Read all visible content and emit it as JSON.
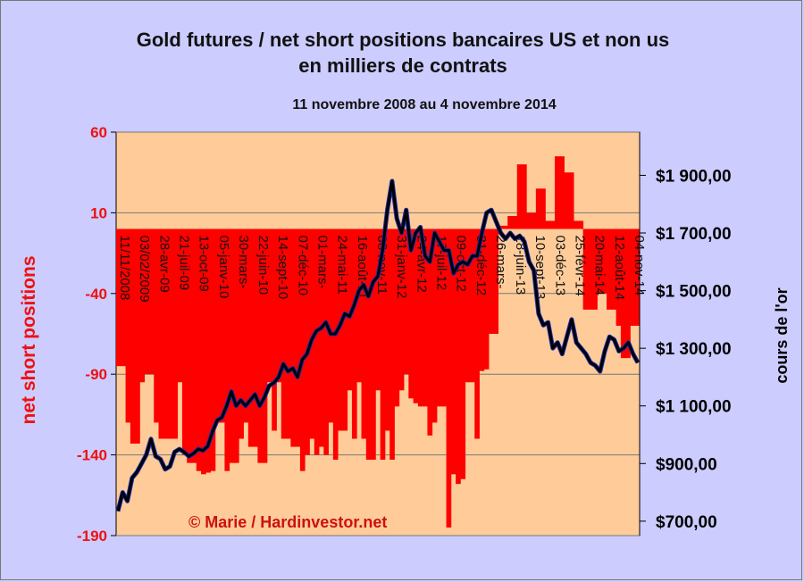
{
  "chart_data": {
    "type": "bar+line",
    "title": "Gold futures / net short positions  bancaires US et non us",
    "title_line2": "en milliers de contrats",
    "subtitle": "11 novembre 2008 au 4 novembre 2014",
    "ylabel_left": "net short positions",
    "ylabel_right": "cours de l'or",
    "credit": "© Marie / Hardinvestor.net",
    "y_left": {
      "min": -190,
      "max": 60,
      "ticks": [
        "60",
        "10",
        "-40",
        "-90",
        "-140",
        "-190"
      ]
    },
    "y_right": {
      "min": 650,
      "max": 2050,
      "ticks": [
        "$1 900,00",
        "$1 700,00",
        "$1 500,00",
        "$1 300,00",
        "$1 100,00",
        "$900,00",
        "$700,00"
      ]
    },
    "x_tick_labels": [
      "11/11/2008",
      "03/02/2009",
      "28-avr-09",
      "21-juil-09",
      "13-oct-09",
      "05-janv-10",
      "30-mars-",
      "22-juin-10",
      "14-sept-10",
      "07-déc-10",
      "01-mars-",
      "24-mai-11",
      "16-août-11",
      "08-nov-11",
      "31-janv-12",
      "24-avr-12",
      "17-juil-12",
      "09-oct-12",
      "31-déc-12",
      "26-mars-",
      "18-juin-13",
      "10-sept-13",
      "03-déc-13",
      "25-févr-14",
      "20-mai-14",
      "12-août-14",
      "04-nov-14"
    ],
    "series": [
      {
        "name": "net short positions",
        "axis": "left",
        "color": "#ff0000",
        "values": [
          -85,
          -85,
          -120,
          -133,
          -133,
          -95,
          -90,
          -90,
          -120,
          -130,
          -130,
          -130,
          -130,
          -95,
          -140,
          -145,
          -145,
          -150,
          -152,
          -151,
          -150,
          -120,
          -120,
          -150,
          -145,
          -145,
          -130,
          -120,
          -135,
          -135,
          -145,
          -145,
          -95,
          -125,
          -95,
          -130,
          -130,
          -135,
          -135,
          -150,
          -140,
          -130,
          -140,
          -135,
          -140,
          -120,
          -143,
          -125,
          -125,
          -100,
          -130,
          -95,
          -130,
          -143,
          -143,
          -100,
          -143,
          -125,
          -143,
          -110,
          -100,
          -90,
          -105,
          -108,
          -110,
          -110,
          -128,
          -120,
          -110,
          -110,
          -185,
          -152,
          -158,
          -155,
          -95,
          -95,
          -130,
          -88,
          -87,
          -65,
          -65,
          2,
          2,
          8,
          8,
          40,
          40,
          10,
          10,
          25,
          25,
          5,
          5,
          45,
          45,
          35,
          35,
          5,
          5,
          -50,
          -50,
          -50,
          -40,
          -40,
          -50,
          -50,
          -60,
          -80,
          -80,
          -60,
          -60
        ]
      },
      {
        "name": "cours de l'or",
        "axis": "right",
        "color": "#000000",
        "values": [
          735,
          800,
          770,
          850,
          870,
          900,
          930,
          985,
          925,
          915,
          880,
          890,
          940,
          950,
          940,
          925,
          935,
          950,
          945,
          960,
          1010,
          1050,
          1060,
          1100,
          1150,
          1100,
          1120,
          1100,
          1120,
          1140,
          1100,
          1130,
          1170,
          1180,
          1200,
          1245,
          1220,
          1230,
          1200,
          1260,
          1280,
          1330,
          1360,
          1370,
          1390,
          1350,
          1350,
          1380,
          1420,
          1410,
          1450,
          1500,
          1520,
          1480,
          1530,
          1550,
          1640,
          1780,
          1880,
          1750,
          1700,
          1780,
          1640,
          1700,
          1720,
          1620,
          1600,
          1700,
          1670,
          1640,
          1640,
          1560,
          1590,
          1600,
          1590,
          1620,
          1620,
          1700,
          1770,
          1780,
          1740,
          1700,
          1680,
          1700,
          1680,
          1690,
          1670,
          1600,
          1570,
          1420,
          1380,
          1390,
          1300,
          1320,
          1280,
          1340,
          1400,
          1320,
          1300,
          1280,
          1250,
          1240,
          1220,
          1290,
          1340,
          1330,
          1290,
          1300,
          1320,
          1280,
          1250
        ]
      }
    ]
  }
}
